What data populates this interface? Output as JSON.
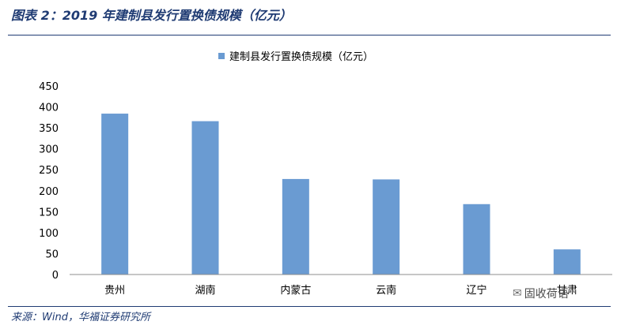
{
  "header": {
    "title": "图表 2：2019 年建制县发行置换债规模（亿元）"
  },
  "footer": {
    "source": "来源：Wind，华福证券研究所"
  },
  "watermark": {
    "text": "固收荷语",
    "icon": "wechat-icon"
  },
  "colors": {
    "bar": "#6a9bd2",
    "accent": "#1f3b73",
    "axis": "#8c8c8c"
  },
  "chart_data": {
    "type": "bar",
    "title": "",
    "legend": {
      "position": "top-center",
      "entries": [
        "建制县发行置换债规模（亿元）"
      ]
    },
    "categories": [
      "贵州",
      "湖南",
      "内蒙古",
      "云南",
      "辽宁",
      "甘肃"
    ],
    "series": [
      {
        "name": "建制县发行置换债规模（亿元）",
        "values": [
          384,
          366,
          228,
          227,
          168,
          60
        ]
      }
    ],
    "xlabel": "",
    "ylabel": "",
    "ylim": [
      0,
      450
    ],
    "yticks": [
      0,
      50,
      100,
      150,
      200,
      250,
      300,
      350,
      400,
      450
    ],
    "grid": false
  }
}
